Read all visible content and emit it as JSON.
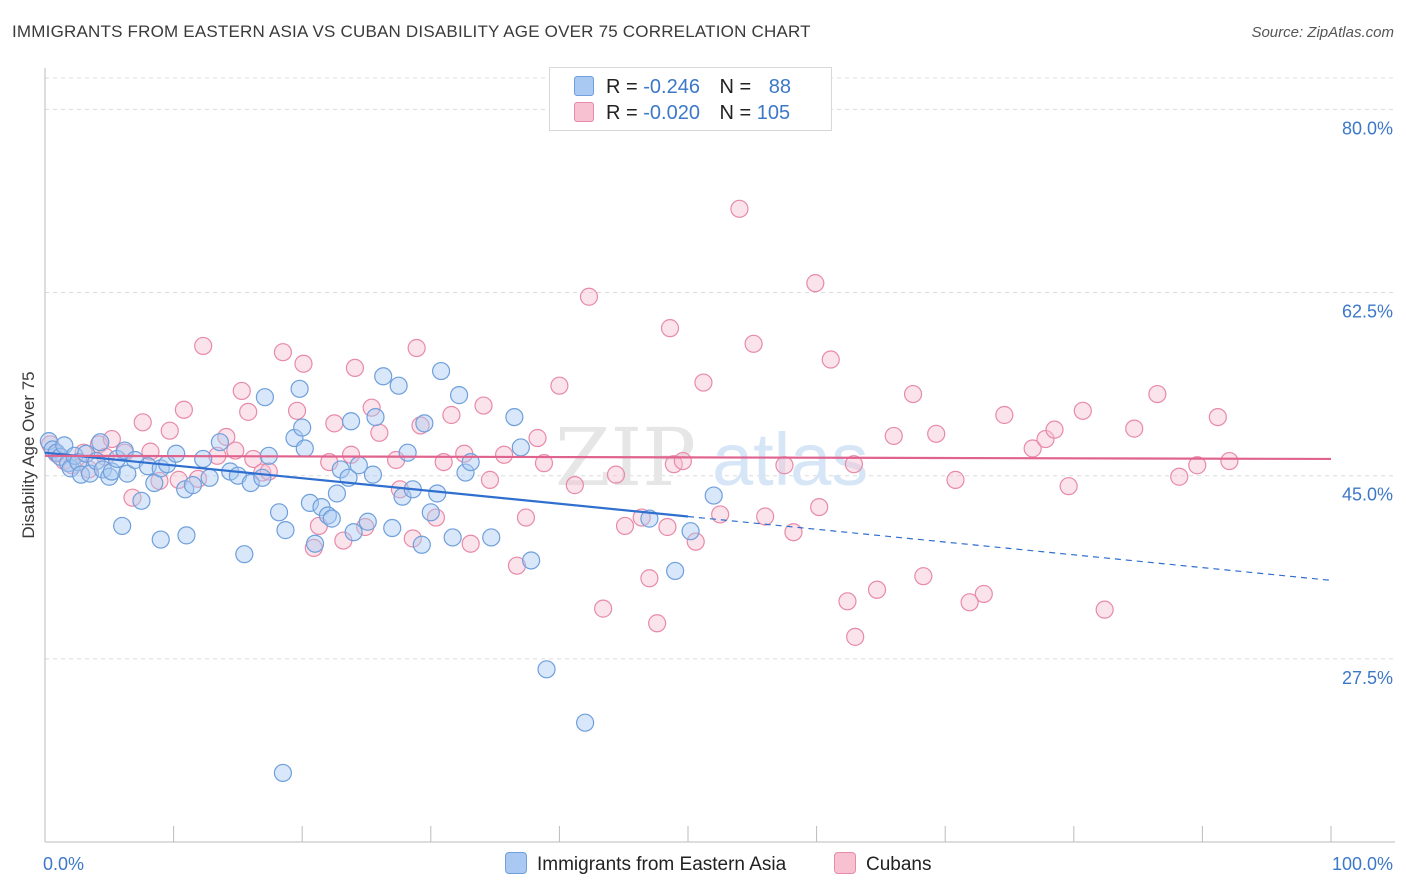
{
  "title": "IMMIGRANTS FROM EASTERN ASIA VS CUBAN DISABILITY AGE OVER 75 CORRELATION CHART",
  "source": "Source: ZipAtlas.com",
  "watermark": {
    "zip": "ZIP",
    "atlas": "atlas"
  },
  "legend": {
    "rows": [
      {
        "r_label": "R =",
        "r_value": "-0.246",
        "n_label": "N =",
        "n_value": "88",
        "color": "#a9c9f2",
        "border": "#6f9fdc"
      },
      {
        "r_label": "R =",
        "r_value": "-0.020",
        "n_label": "N =",
        "n_value": "105",
        "color": "#f7c1d2",
        "border": "#e88aa8"
      }
    ]
  },
  "bottom_legend": {
    "series1": "Immigrants from Eastern Asia",
    "series2": "Cubans"
  },
  "chart_data": {
    "type": "scatter",
    "title": "IMMIGRANTS FROM EASTERN ASIA VS CUBAN DISABILITY AGE OVER 75 CORRELATION CHART",
    "xlabel": "",
    "ylabel": "Disability Age Over 75",
    "xlim": [
      0,
      100
    ],
    "ylim": [
      10,
      83
    ],
    "x_tick_labels": [
      "0.0%",
      "100.0%"
    ],
    "y_ticks": [
      27.5,
      45.0,
      62.5,
      80.0
    ],
    "y_tick_labels": [
      "27.5%",
      "45.0%",
      "62.5%",
      "80.0%"
    ],
    "grid": "horizontal dashed",
    "legend_position": "top-center",
    "series": [
      {
        "name": "Immigrants from Eastern Asia",
        "color": "#6f9fdc",
        "fill": "#a9c9f2",
        "trend": {
          "x0": 0,
          "y0": 47.2,
          "x_solid_end": 50,
          "x1": 100,
          "y1": 35.0
        },
        "points": [
          [
            0.3,
            48.3
          ],
          [
            0.6,
            47.5
          ],
          [
            0.9,
            47.2
          ],
          [
            1.2,
            46.8
          ],
          [
            1.5,
            47.9
          ],
          [
            1.8,
            46.2
          ],
          [
            2.0,
            45.7
          ],
          [
            2.3,
            46.9
          ],
          [
            2.6,
            46.3
          ],
          [
            2.8,
            45.1
          ],
          [
            3.2,
            47.1
          ],
          [
            3.5,
            45.2
          ],
          [
            4.0,
            46.4
          ],
          [
            4.3,
            48.2
          ],
          [
            4.5,
            45.6
          ],
          [
            5.0,
            44.9
          ],
          [
            5.2,
            45.4
          ],
          [
            5.6,
            46.6
          ],
          [
            6.2,
            47.4
          ],
          [
            6.4,
            45.2
          ],
          [
            7.0,
            46.5
          ],
          [
            7.5,
            42.6
          ],
          [
            8.0,
            45.9
          ],
          [
            8.5,
            44.3
          ],
          [
            9.0,
            45.7
          ],
          [
            9.5,
            46.1
          ],
          [
            10.2,
            47.1
          ],
          [
            10.9,
            43.7
          ],
          [
            11.5,
            44.1
          ],
          [
            12.3,
            46.6
          ],
          [
            12.8,
            44.8
          ],
          [
            13.6,
            48.2
          ],
          [
            14.4,
            45.4
          ],
          [
            15.0,
            45.0
          ],
          [
            16.0,
            44.3
          ],
          [
            16.9,
            44.8
          ],
          [
            17.1,
            52.5
          ],
          [
            17.4,
            46.9
          ],
          [
            18.2,
            41.5
          ],
          [
            18.7,
            39.8
          ],
          [
            19.4,
            48.6
          ],
          [
            19.8,
            53.3
          ],
          [
            20.0,
            49.6
          ],
          [
            20.2,
            47.6
          ],
          [
            20.6,
            42.4
          ],
          [
            21.5,
            42.0
          ],
          [
            22.0,
            41.2
          ],
          [
            22.3,
            40.9
          ],
          [
            22.7,
            43.3
          ],
          [
            23.0,
            45.6
          ],
          [
            23.6,
            44.8
          ],
          [
            23.8,
            50.2
          ],
          [
            24.4,
            46.0
          ],
          [
            25.1,
            40.6
          ],
          [
            25.5,
            45.1
          ],
          [
            25.7,
            50.6
          ],
          [
            26.3,
            54.5
          ],
          [
            27.5,
            53.6
          ],
          [
            27.8,
            43.0
          ],
          [
            28.2,
            47.2
          ],
          [
            28.6,
            43.7
          ],
          [
            29.3,
            38.4
          ],
          [
            29.5,
            50.0
          ],
          [
            30.0,
            41.5
          ],
          [
            30.5,
            43.3
          ],
          [
            30.8,
            55.0
          ],
          [
            31.7,
            39.1
          ],
          [
            32.2,
            52.7
          ],
          [
            32.7,
            45.3
          ],
          [
            33.1,
            46.3
          ],
          [
            34.7,
            39.1
          ],
          [
            36.5,
            50.6
          ],
          [
            37.0,
            47.7
          ],
          [
            37.8,
            36.9
          ],
          [
            39.0,
            26.5
          ],
          [
            47.0,
            40.9
          ],
          [
            49.0,
            35.9
          ],
          [
            50.2,
            39.7
          ],
          [
            52.0,
            43.1
          ],
          [
            42.0,
            21.4
          ],
          [
            18.5,
            16.6
          ],
          [
            9.0,
            38.9
          ],
          [
            6.0,
            40.2
          ],
          [
            11.0,
            39.3
          ],
          [
            15.5,
            37.5
          ],
          [
            21.0,
            38.5
          ],
          [
            27.0,
            40.0
          ],
          [
            24.0,
            39.6
          ]
        ]
      },
      {
        "name": "Cubans",
        "color": "#e88aa8",
        "fill": "#f7c1d2",
        "trend": {
          "x0": 0,
          "y0": 46.9,
          "x1": 100,
          "y1": 46.6
        },
        "points": [
          [
            0.4,
            48.0
          ],
          [
            0.9,
            47.1
          ],
          [
            1.5,
            46.4
          ],
          [
            2.1,
            46.0
          ],
          [
            3.0,
            47.2
          ],
          [
            3.4,
            45.6
          ],
          [
            4.2,
            48.0
          ],
          [
            4.7,
            46.8
          ],
          [
            5.2,
            48.5
          ],
          [
            6.2,
            47.2
          ],
          [
            6.8,
            42.9
          ],
          [
            7.6,
            50.1
          ],
          [
            8.2,
            47.3
          ],
          [
            8.9,
            44.5
          ],
          [
            9.7,
            49.3
          ],
          [
            10.4,
            44.6
          ],
          [
            10.8,
            51.3
          ],
          [
            11.9,
            44.7
          ],
          [
            12.3,
            57.4
          ],
          [
            13.4,
            46.9
          ],
          [
            14.1,
            48.7
          ],
          [
            14.8,
            47.4
          ],
          [
            15.3,
            53.1
          ],
          [
            15.8,
            51.1
          ],
          [
            16.2,
            46.6
          ],
          [
            16.9,
            45.3
          ],
          [
            17.4,
            45.4
          ],
          [
            18.5,
            56.8
          ],
          [
            19.6,
            51.2
          ],
          [
            20.1,
            55.7
          ],
          [
            20.9,
            38.1
          ],
          [
            21.3,
            40.2
          ],
          [
            22.1,
            46.3
          ],
          [
            22.5,
            50.0
          ],
          [
            23.2,
            38.8
          ],
          [
            23.8,
            47.0
          ],
          [
            24.1,
            55.3
          ],
          [
            24.9,
            40.1
          ],
          [
            25.4,
            51.5
          ],
          [
            26.0,
            49.1
          ],
          [
            27.3,
            46.5
          ],
          [
            27.6,
            43.7
          ],
          [
            28.6,
            39.0
          ],
          [
            28.9,
            57.2
          ],
          [
            29.2,
            49.8
          ],
          [
            30.4,
            41.0
          ],
          [
            31.0,
            46.3
          ],
          [
            31.6,
            50.8
          ],
          [
            32.6,
            47.1
          ],
          [
            33.1,
            38.5
          ],
          [
            34.1,
            51.7
          ],
          [
            34.6,
            44.6
          ],
          [
            35.7,
            47.0
          ],
          [
            36.7,
            36.4
          ],
          [
            37.4,
            41.0
          ],
          [
            38.3,
            48.6
          ],
          [
            38.8,
            46.2
          ],
          [
            40.0,
            53.6
          ],
          [
            41.2,
            44.1
          ],
          [
            42.3,
            62.1
          ],
          [
            43.4,
            32.3
          ],
          [
            44.4,
            45.1
          ],
          [
            45.1,
            40.2
          ],
          [
            46.4,
            41.0
          ],
          [
            47.0,
            35.2
          ],
          [
            48.4,
            40.1
          ],
          [
            48.6,
            59.1
          ],
          [
            48.9,
            46.1
          ],
          [
            49.6,
            46.4
          ],
          [
            50.6,
            38.7
          ],
          [
            51.2,
            53.9
          ],
          [
            52.5,
            41.3
          ],
          [
            54.0,
            70.5
          ],
          [
            55.1,
            57.6
          ],
          [
            56.0,
            41.1
          ],
          [
            57.5,
            46.0
          ],
          [
            58.2,
            39.6
          ],
          [
            60.2,
            42.0
          ],
          [
            62.4,
            33.0
          ],
          [
            63.0,
            29.6
          ],
          [
            64.7,
            34.1
          ],
          [
            66.0,
            48.8
          ],
          [
            67.5,
            52.8
          ],
          [
            68.3,
            35.4
          ],
          [
            69.3,
            49.0
          ],
          [
            70.8,
            44.6
          ],
          [
            73.0,
            33.7
          ],
          [
            74.6,
            50.8
          ],
          [
            76.8,
            47.6
          ],
          [
            77.8,
            48.5
          ],
          [
            78.5,
            49.4
          ],
          [
            79.6,
            44.0
          ],
          [
            80.7,
            51.2
          ],
          [
            82.4,
            32.2
          ],
          [
            84.7,
            49.5
          ],
          [
            86.5,
            52.8
          ],
          [
            88.2,
            44.9
          ],
          [
            89.6,
            46.0
          ],
          [
            91.2,
            50.6
          ],
          [
            92.1,
            46.4
          ],
          [
            59.9,
            63.4
          ],
          [
            61.1,
            56.1
          ],
          [
            62.9,
            46.1
          ],
          [
            71.9,
            32.9
          ],
          [
            47.6,
            30.9
          ]
        ]
      }
    ]
  }
}
